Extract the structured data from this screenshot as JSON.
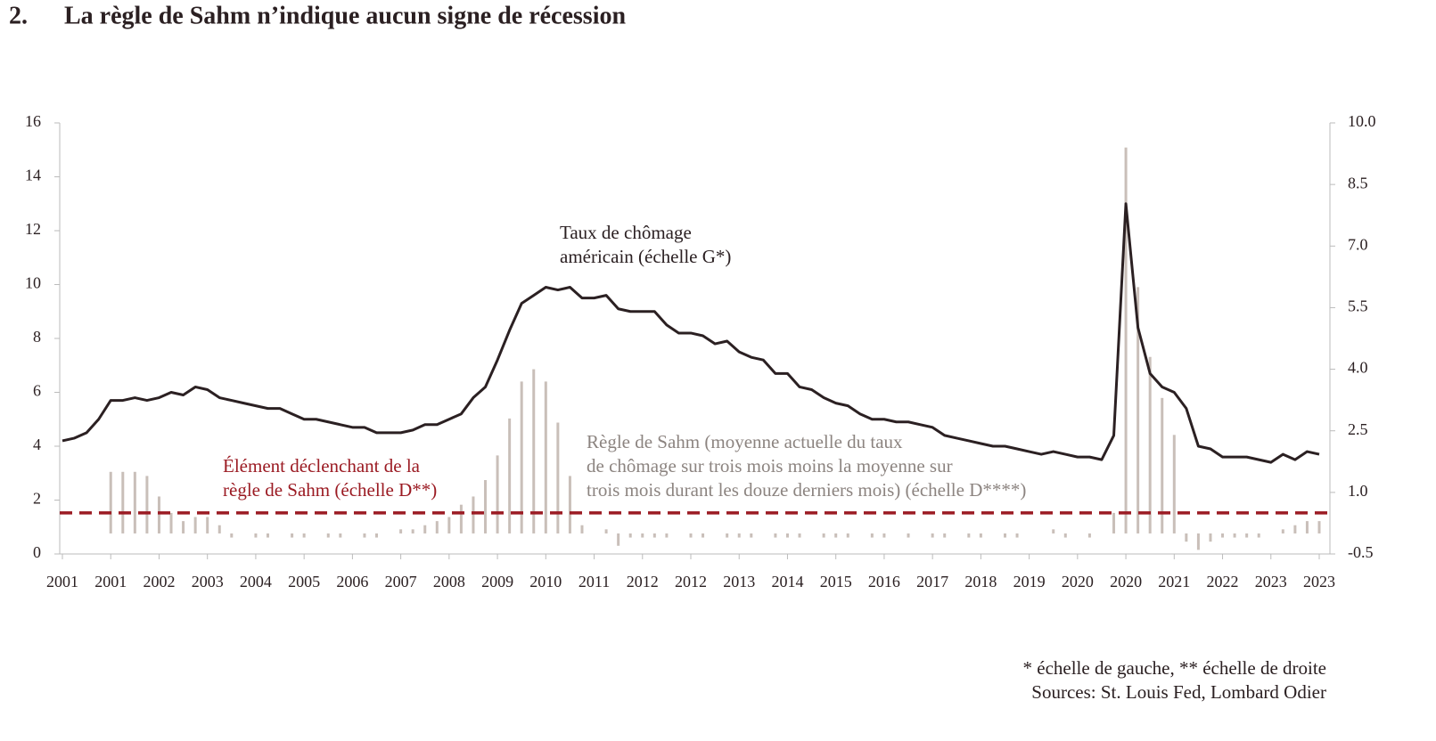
{
  "chart_data": {
    "type": "bar_line",
    "title_number": "2.",
    "title": "La règle de Sahm n’indique aucun signe de récession",
    "categories": [
      "2001",
      null,
      null,
      null,
      "2001",
      null,
      null,
      null,
      "2002",
      null,
      null,
      null,
      "2003",
      null,
      null,
      null,
      "2004",
      null,
      null,
      null,
      "2005",
      null,
      null,
      null,
      "2006",
      null,
      null,
      null,
      "2007",
      null,
      null,
      null,
      "2008",
      null,
      null,
      null,
      "2009",
      null,
      null,
      null,
      "2010",
      null,
      null,
      null,
      "2011",
      null,
      null,
      null,
      "2012",
      null,
      null,
      null,
      "2012",
      null,
      null,
      null,
      "2013",
      null,
      null,
      null,
      "2014",
      null,
      null,
      null,
      "2015",
      null,
      null,
      null,
      "2016",
      null,
      null,
      null,
      "2017",
      null,
      null,
      null,
      "2018",
      null,
      null,
      null,
      "2019",
      null,
      null,
      null,
      "2020",
      null,
      null,
      null,
      "2020",
      null,
      null,
      null,
      "2021",
      null,
      null,
      null,
      "2022",
      null,
      null,
      null,
      "2023",
      null,
      null,
      null,
      "2023"
    ],
    "series": [
      {
        "name": [
          "Taux de chômage",
          "américain (échelle G*)"
        ],
        "type": "line",
        "axis": "y",
        "color": "#2b2022",
        "values": [
          4.2,
          4.3,
          4.5,
          5.0,
          5.7,
          5.7,
          5.8,
          5.7,
          5.8,
          6.0,
          5.9,
          6.2,
          6.1,
          5.8,
          5.7,
          5.6,
          5.5,
          5.4,
          5.4,
          5.2,
          5.0,
          5.0,
          4.9,
          4.8,
          4.7,
          4.7,
          4.5,
          4.5,
          4.5,
          4.6,
          4.8,
          4.8,
          5.0,
          5.2,
          5.8,
          6.2,
          7.2,
          8.3,
          9.3,
          9.6,
          9.9,
          9.8,
          9.9,
          9.5,
          9.5,
          9.6,
          9.1,
          9.0,
          9.0,
          9.0,
          8.5,
          8.2,
          8.2,
          8.1,
          7.8,
          7.9,
          7.5,
          7.3,
          7.2,
          6.7,
          6.7,
          6.2,
          6.1,
          5.8,
          5.6,
          5.5,
          5.2,
          5.0,
          5.0,
          4.9,
          4.9,
          4.8,
          4.7,
          4.4,
          4.3,
          4.2,
          4.1,
          4.0,
          4.0,
          3.9,
          3.8,
          3.7,
          3.8,
          3.7,
          3.6,
          3.6,
          3.5,
          4.4,
          13.0,
          8.4,
          6.7,
          6.2,
          6.0,
          5.4,
          4.0,
          3.9,
          3.6,
          3.6,
          3.6,
          3.5,
          3.4,
          3.7,
          3.5,
          3.8,
          3.7
        ]
      },
      {
        "name": [
          "Règle de Sahm (moyenne actuelle du taux",
          "de chômage sur trois mois moins la moyenne sur",
          "trois mois durant les douze derniers mois) (échelle D****)"
        ],
        "type": "bar",
        "axis": "y2",
        "color": "#c9bfb9",
        "values": [
          0,
          0,
          0,
          0,
          1.5,
          1.5,
          1.5,
          1.4,
          0.9,
          0.5,
          0.3,
          0.4,
          0.4,
          0.2,
          -0.1,
          0,
          -0.1,
          -0.1,
          0,
          -0.1,
          -0.1,
          0,
          -0.1,
          -0.1,
          0,
          -0.1,
          -0.1,
          0,
          0.1,
          0.1,
          0.2,
          0.3,
          0.4,
          0.7,
          0.9,
          1.3,
          1.9,
          2.8,
          3.7,
          4.0,
          3.7,
          2.7,
          1.4,
          0.2,
          0,
          0.1,
          -0.3,
          -0.1,
          -0.1,
          -0.1,
          -0.1,
          0,
          -0.1,
          -0.1,
          0,
          -0.1,
          -0.1,
          -0.1,
          0,
          -0.1,
          -0.1,
          -0.1,
          0,
          -0.1,
          -0.1,
          -0.1,
          0,
          -0.1,
          -0.1,
          0,
          -0.1,
          0,
          -0.1,
          -0.1,
          0,
          -0.1,
          -0.1,
          0,
          -0.1,
          -0.1,
          0,
          0,
          0.1,
          -0.1,
          0,
          -0.1,
          0,
          0.5,
          9.4,
          6.0,
          4.3,
          3.3,
          2.4,
          -0.2,
          -0.4,
          -0.2,
          -0.1,
          -0.1,
          -0.1,
          -0.1,
          0,
          0.1,
          0.2,
          0.3,
          0.3
        ]
      }
    ],
    "reference_line": {
      "value": 0.5,
      "axis": "y2",
      "color": "#9b1b23",
      "label": [
        "Élément déclenchant de la",
        "règle de Sahm (échelle D**)"
      ]
    },
    "ylim": [
      0,
      16
    ],
    "yticks": [
      0,
      2,
      4,
      6,
      8,
      10,
      12,
      14,
      16
    ],
    "y2lim": [
      -0.5,
      10
    ],
    "y2ticks": [
      -0.5,
      {
        "value": 1,
        "label": "1.0"
      },
      2.5,
      {
        "value": 4,
        "label": "4.0"
      },
      5.5,
      {
        "value": 7,
        "label": "7.0"
      },
      8.5,
      {
        "value": 10,
        "label": "10.0"
      }
    ],
    "footnotes": [
      "* échelle de gauche, ** échelle de droite",
      "Sources: St. Louis Fed, Lombard Odier"
    ]
  }
}
